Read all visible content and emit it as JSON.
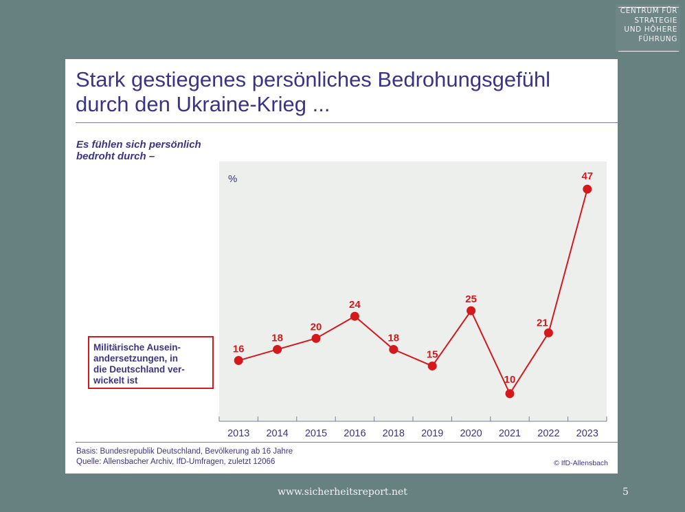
{
  "logo": {
    "lines": [
      "CENTRUM FÜR",
      "STRATEGIE",
      "UND HÖHERE",
      "FÜHRUNG"
    ]
  },
  "slide": {
    "title_line1": "Stark gestiegenes persönliches Bedrohungsgefühl",
    "title_line2": "durch den Ukraine-Krieg ...",
    "subtitle_line1": "Es fühlen sich persönlich",
    "subtitle_line2": "bedroht durch –",
    "basis": "Basis: Bundesrepublik Deutschland, Bevölkerung ab 16 Jahre",
    "source": "Quelle: Allensbacher Archiv, IfD-Umfragen, zuletzt 12066",
    "copyright": "© IfD-Allensbach"
  },
  "chart_data": {
    "type": "line",
    "ylabel": "%",
    "ylim": [
      5,
      52
    ],
    "grid": false,
    "legend_placement": "left",
    "categories": [
      "2013",
      "2014",
      "2015",
      "2016",
      "2018",
      "2019",
      "2020",
      "2021",
      "2022",
      "2023"
    ],
    "series": [
      {
        "name": "Militärische Auseinandersetzungen, in die Deutschland verwickelt ist",
        "legend_lines": [
          "Militärische Ausein-",
          "andersetzungen, in",
          "die Deutschland ver-",
          "wickelt ist"
        ],
        "values": [
          16,
          18,
          20,
          24,
          18,
          15,
          25,
          10,
          21,
          47
        ],
        "color": "#d4181c"
      }
    ],
    "plot_background": "#ecefec"
  },
  "footer": {
    "url": "www.sicherheitsreport.net",
    "page_number": "5"
  }
}
